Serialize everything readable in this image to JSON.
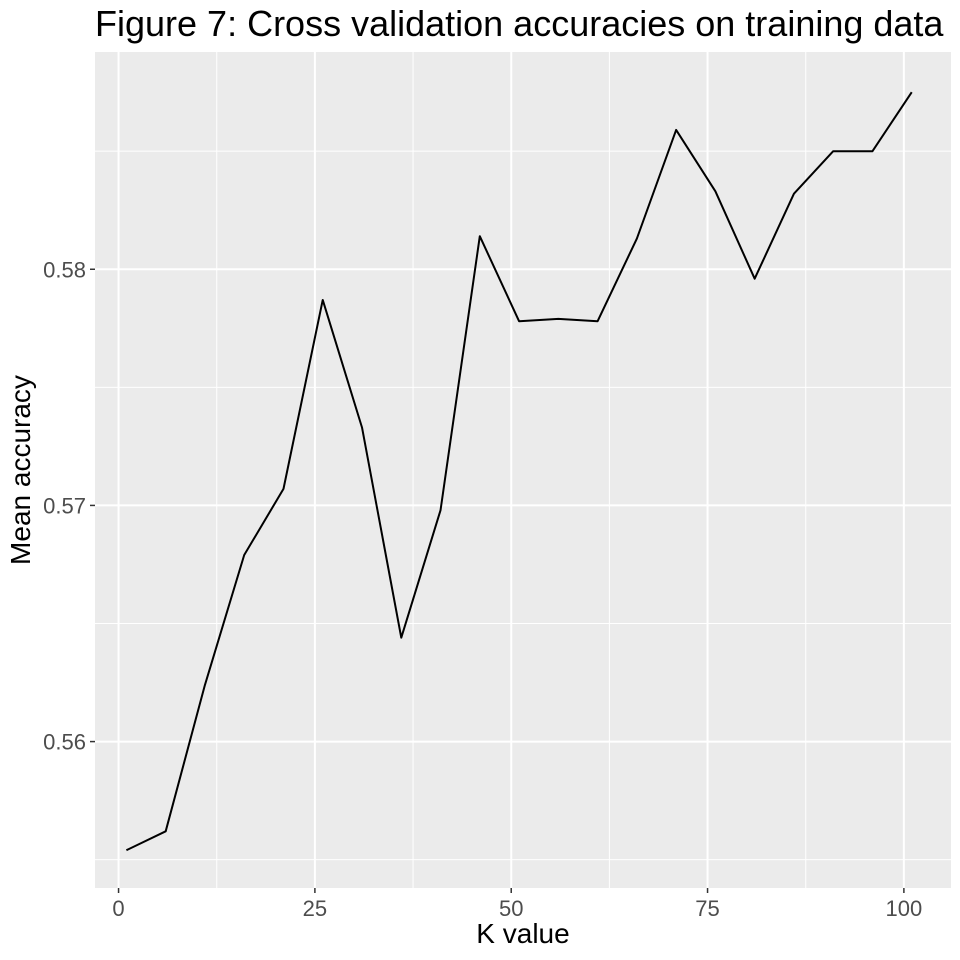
{
  "chart_data": {
    "type": "line",
    "title": "Figure 7: Cross validation accuracies on training data",
    "xlabel": "K value",
    "ylabel": "Mean accuracy",
    "xlim": [
      -3,
      106
    ],
    "ylim": [
      0.5538,
      0.5892
    ],
    "x_ticks": [
      0,
      25,
      50,
      75,
      100
    ],
    "x_tick_labels": [
      "0",
      "25",
      "50",
      "75",
      "100"
    ],
    "y_ticks": [
      0.56,
      0.57,
      0.58
    ],
    "y_tick_labels": [
      "0.56",
      "0.57",
      "0.58"
    ],
    "grid": true,
    "legend": "none",
    "panel_background": "#ebebeb",
    "grid_color": "#ffffff",
    "line_color": "#000000",
    "series": [
      {
        "x": [
          1,
          6,
          11,
          16,
          21,
          26,
          31,
          36,
          41,
          46,
          51,
          56,
          61,
          66,
          71,
          76,
          81,
          86,
          91,
          96,
          101
        ],
        "values": [
          0.5554,
          0.5562,
          0.5624,
          0.5679,
          0.5707,
          0.5787,
          0.5733,
          0.5644,
          0.5698,
          0.5814,
          0.5778,
          0.5779,
          0.5778,
          0.5813,
          0.5859,
          0.5833,
          0.5796,
          0.5832,
          0.585,
          0.585,
          0.5875
        ]
      }
    ]
  }
}
